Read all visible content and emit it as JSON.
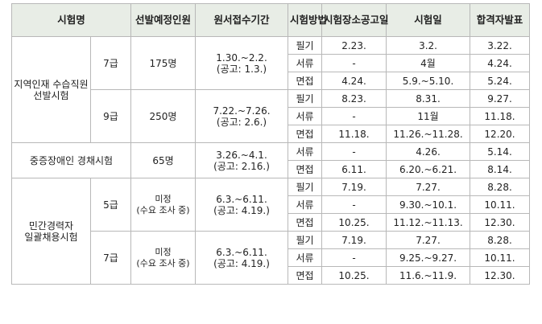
{
  "table": {
    "header": [
      "시험명",
      "선발예정인원",
      "원서접수기간",
      "시험방법",
      "시험장소공고일",
      "시험일",
      "합격자발표"
    ],
    "groups": [
      {
        "name": "지역인재 수습직원 선발시험",
        "subgroups": [
          {
            "grade": "7급",
            "count": [
              "175명"
            ],
            "period": [
              "1.30.~2.2.",
              "(공고: 1.3.)"
            ],
            "rows": [
              [
                "필기",
                "2.23.",
                "3.2.",
                "3.22."
              ],
              [
                "서류",
                "-",
                "4월",
                "4.24."
              ],
              [
                "면접",
                "4.24.",
                "5.9.~5.10.",
                "5.24."
              ]
            ]
          },
          {
            "grade": "9급",
            "count": [
              "250명"
            ],
            "period": [
              "7.22.~7.26.",
              "(공고: 2.6.)"
            ],
            "rows": [
              [
                "필기",
                "8.23.",
                "8.31.",
                "9.27."
              ],
              [
                "서류",
                "-",
                "11월",
                "11.18."
              ],
              [
                "면접",
                "11.18.",
                "11.26.~11.28.",
                "12.20."
              ]
            ]
          }
        ]
      },
      {
        "name": "중증장애인 경채시험",
        "subgroups": [
          {
            "count": [
              "65명"
            ],
            "period": [
              "3.26.~4.1.",
              "(공고: 2.16.)"
            ],
            "rows": [
              [
                "서류",
                "-",
                "4.26.",
                "5.14."
              ],
              [
                "면접",
                "6.11.",
                "6.20.~6.21.",
                "8.14."
              ]
            ]
          }
        ]
      },
      {
        "name": "민간경력자 일괄채용시험",
        "subgroups": [
          {
            "grade": "5급",
            "count": [
              "미정",
              "(수요 조사 중)"
            ],
            "period": [
              "6.3.~6.11.",
              "(공고: 4.19.)"
            ],
            "rows": [
              [
                "필기",
                "7.19.",
                "7.27.",
                "8.28."
              ],
              [
                "서류",
                "-",
                "9.30.~10.1.",
                "10.11."
              ],
              [
                "면접",
                "10.25.",
                "11.12.~11.13.",
                "12.30."
              ]
            ]
          },
          {
            "grade": "7급",
            "count": [
              "미정",
              "(수요 조사 중)"
            ],
            "period": [
              "6.3.~6.11.",
              "(공고: 4.19.)"
            ],
            "rows": [
              [
                "필기",
                "7.19.",
                "7.27.",
                "8.28."
              ],
              [
                "서류",
                "-",
                "9.25.~9.27.",
                "10.11."
              ],
              [
                "면접",
                "10.25.",
                "11.6.~11.9.",
                "12.30."
              ]
            ]
          }
        ]
      }
    ]
  }
}
